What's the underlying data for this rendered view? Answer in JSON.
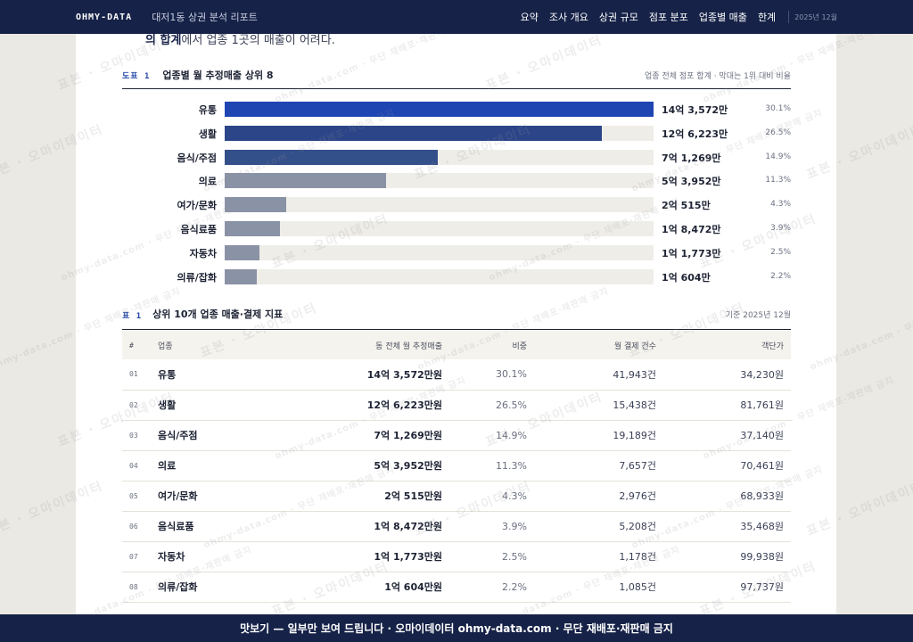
{
  "header": {
    "brand": "OHMY-DATA",
    "doc_title": "대저1동 상권 분석 리포트",
    "nav": [
      "요약",
      "조사 개요",
      "상권 규모",
      "점포 분포",
      "업종별 매출",
      "한계"
    ],
    "date": "2025년 12월"
  },
  "intro": {
    "bold": "의 합계",
    "rest": "에서 업종 1곳의 매출이 어려다."
  },
  "figure": {
    "tag": "도표 1",
    "title": "업종별 월 추정매출 상위 8",
    "note": "업종 전체 점포 합계 · 막대는 1위 대비 비율"
  },
  "chart_data": {
    "type": "bar",
    "orientation": "horizontal",
    "title": "업종별 월 추정매출 상위 8",
    "unit": "원",
    "categories": [
      "유통",
      "생활",
      "음식/주점",
      "의료",
      "여가/문화",
      "음식료품",
      "자동차",
      "의류/잡화"
    ],
    "values": [
      1435720000,
      1262230000,
      712690000,
      539520000,
      205150000,
      184720000,
      117730000,
      106040000
    ],
    "value_labels": [
      "14억 3,572만",
      "12억 6,223만",
      "7억 1,269만",
      "5억 3,952만",
      "2억 515만",
      "1억 8,472만",
      "1억 1,773만",
      "1억 604만"
    ],
    "shares": [
      "30.1%",
      "26.5%",
      "14.9%",
      "11.3%",
      "4.3%",
      "3.9%",
      "2.5%",
      "2.2%"
    ],
    "colors": [
      "#1f45b3",
      "#2b4588",
      "#34508a",
      "#8a92a6",
      "#8a92a6",
      "#8a92a6",
      "#8a92a6",
      "#8a92a6"
    ],
    "track_color": "#efede7"
  },
  "table": {
    "tag": "표 1",
    "title": "상위 10개 업종 매출·결제 지표",
    "note": "기준 2025년 12월",
    "columns": [
      "#",
      "업종",
      "동 전체 월 추정매출",
      "비중",
      "월 결제 건수",
      "객단가"
    ],
    "rows": [
      {
        "num": "01",
        "name": "유통",
        "sales": "14억 3,572만원",
        "share": "30.1%",
        "count": "41,943건",
        "ticket": "34,230원"
      },
      {
        "num": "02",
        "name": "생활",
        "sales": "12억 6,223만원",
        "share": "26.5%",
        "count": "15,438건",
        "ticket": "81,761원"
      },
      {
        "num": "03",
        "name": "음식/주점",
        "sales": "7억 1,269만원",
        "share": "14.9%",
        "count": "19,189건",
        "ticket": "37,140원"
      },
      {
        "num": "04",
        "name": "의료",
        "sales": "5억 3,952만원",
        "share": "11.3%",
        "count": "7,657건",
        "ticket": "70,461원"
      },
      {
        "num": "05",
        "name": "여가/문화",
        "sales": "2억 515만원",
        "share": "4.3%",
        "count": "2,976건",
        "ticket": "68,933원"
      },
      {
        "num": "06",
        "name": "음식료품",
        "sales": "1억 8,472만원",
        "share": "3.9%",
        "count": "5,208건",
        "ticket": "35,468원"
      },
      {
        "num": "07",
        "name": "자동차",
        "sales": "1억 1,773만원",
        "share": "2.5%",
        "count": "1,178건",
        "ticket": "99,938원"
      },
      {
        "num": "08",
        "name": "의류/잡화",
        "sales": "1억 604만원",
        "share": "2.2%",
        "count": "1,085건",
        "ticket": "97,737원"
      }
    ]
  },
  "watermark": {
    "main": "표본 · 오마이데이터",
    "sub": "ohmy-data.com · 무단 재배포·재판매 금지"
  },
  "footer": {
    "text": "맛보기 — 일부만 보여 드립니다 · 오마이데이터 ohmy-data.com · 무단 재배포·재판매 금지"
  }
}
